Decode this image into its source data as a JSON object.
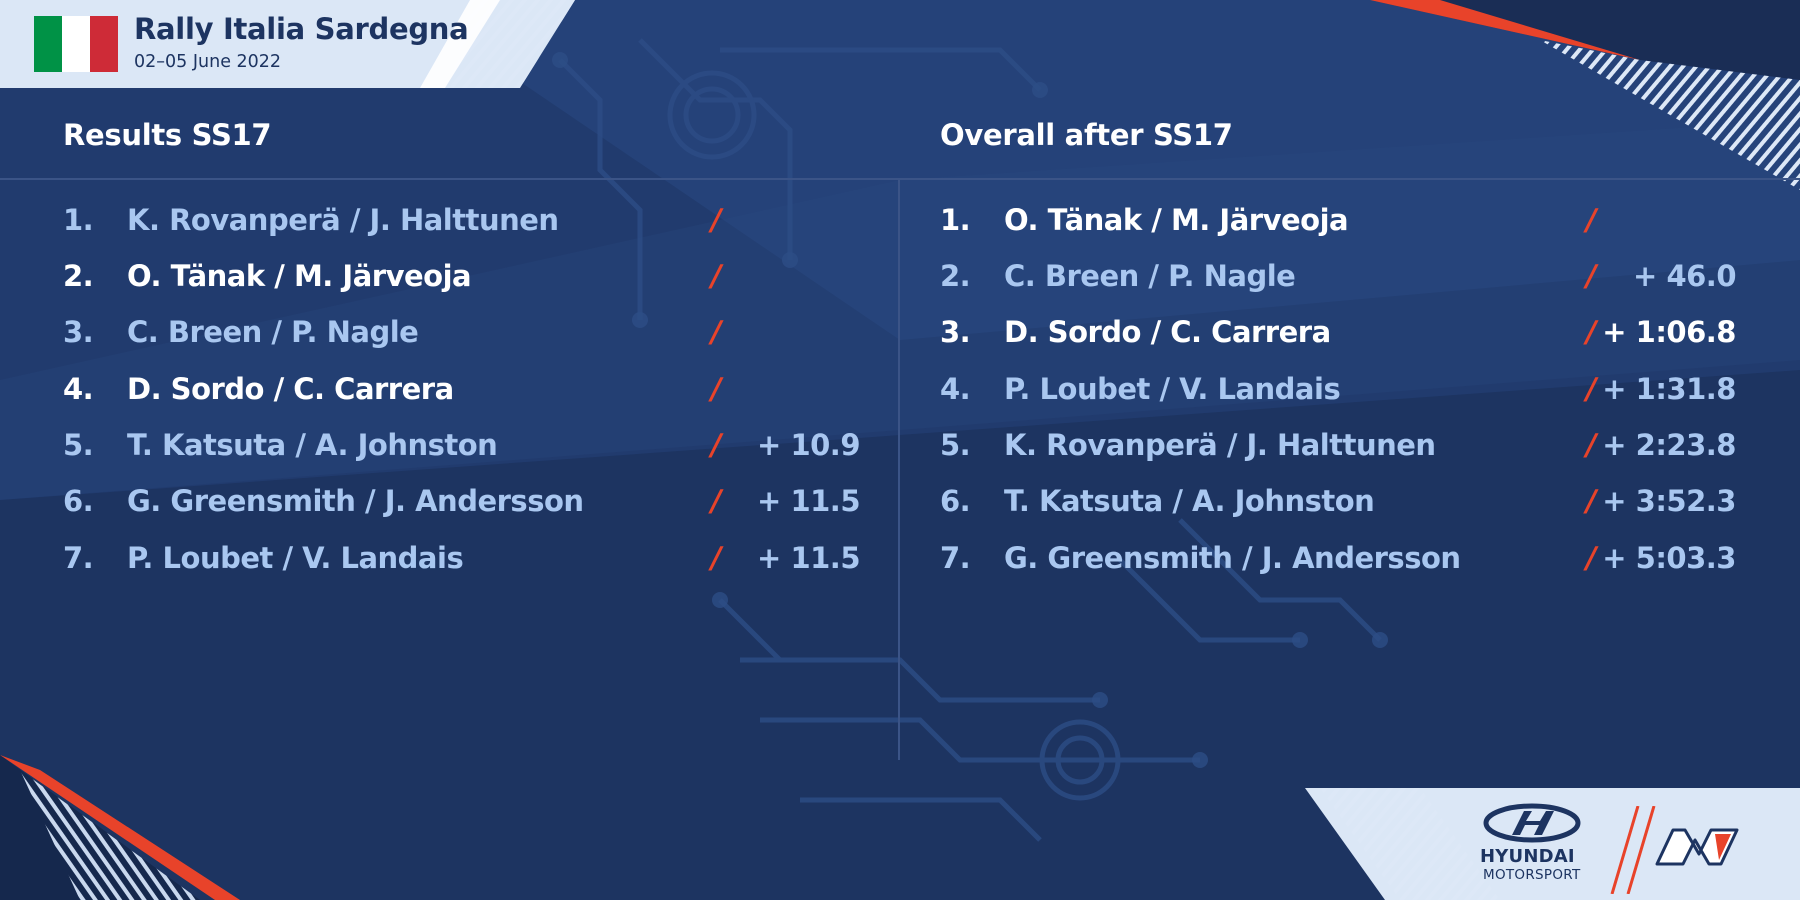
{
  "event": {
    "title": "Rally Italia Sardegna",
    "dates": "02–05 June 2022",
    "flag_icon": "italy-flag-icon",
    "flag_colors": [
      "#009246",
      "#ffffff",
      "#ce2b37"
    ]
  },
  "colors": {
    "background": "#1d3461",
    "accent_red": "#e8432a",
    "highlight_text": "#ffffff",
    "muted_text": "#a9c7f0"
  },
  "results": {
    "title": "Results SS17",
    "rows": [
      {
        "pos": "1.",
        "crew": "K. Rovanperä / J. Halttunen",
        "time": "",
        "highlight": false
      },
      {
        "pos": "2.",
        "crew": "O. Tänak / M. Järveoja",
        "time": "",
        "highlight": true
      },
      {
        "pos": "3.",
        "crew": "C. Breen / P. Nagle",
        "time": "",
        "highlight": false
      },
      {
        "pos": "4.",
        "crew": "D. Sordo / C. Carrera",
        "time": "",
        "highlight": true
      },
      {
        "pos": "5.",
        "crew": "T. Katsuta / A. Johnston",
        "time": "+ 10.9",
        "highlight": false
      },
      {
        "pos": "6.",
        "crew": "G. Greensmith / J. Andersson",
        "time": "+ 11.5",
        "highlight": false
      },
      {
        "pos": "7.",
        "crew": "P. Loubet / V. Landais",
        "time": "+ 11.5",
        "highlight": false
      }
    ]
  },
  "overall": {
    "title": "Overall after SS17",
    "rows": [
      {
        "pos": "1.",
        "crew": "O. Tänak / M. Järveoja",
        "time": "",
        "highlight": true
      },
      {
        "pos": "2.",
        "crew": "C. Breen / P. Nagle",
        "time": "+ 46.0",
        "highlight": false
      },
      {
        "pos": "3.",
        "crew": "D. Sordo / C. Carrera",
        "time": "+ 1:06.8",
        "highlight": true
      },
      {
        "pos": "4.",
        "crew": "P. Loubet / V. Landais",
        "time": "+ 1:31.8",
        "highlight": false
      },
      {
        "pos": "5.",
        "crew": "K. Rovanperä / J. Halttunen",
        "time": "+ 2:23.8",
        "highlight": false
      },
      {
        "pos": "6.",
        "crew": "T. Katsuta / A. Johnston",
        "time": "+ 3:52.3",
        "highlight": false
      },
      {
        "pos": "7.",
        "crew": "G. Greensmith / J. Andersson",
        "time": "+ 5:03.3",
        "highlight": false
      }
    ]
  },
  "separator": "/",
  "footer": {
    "brand": "HYUNDAI",
    "sub_brand": "MOTORSPORT",
    "brand_icon": "hyundai-logo-icon",
    "n_icon": "hyundai-n-logo-icon"
  }
}
